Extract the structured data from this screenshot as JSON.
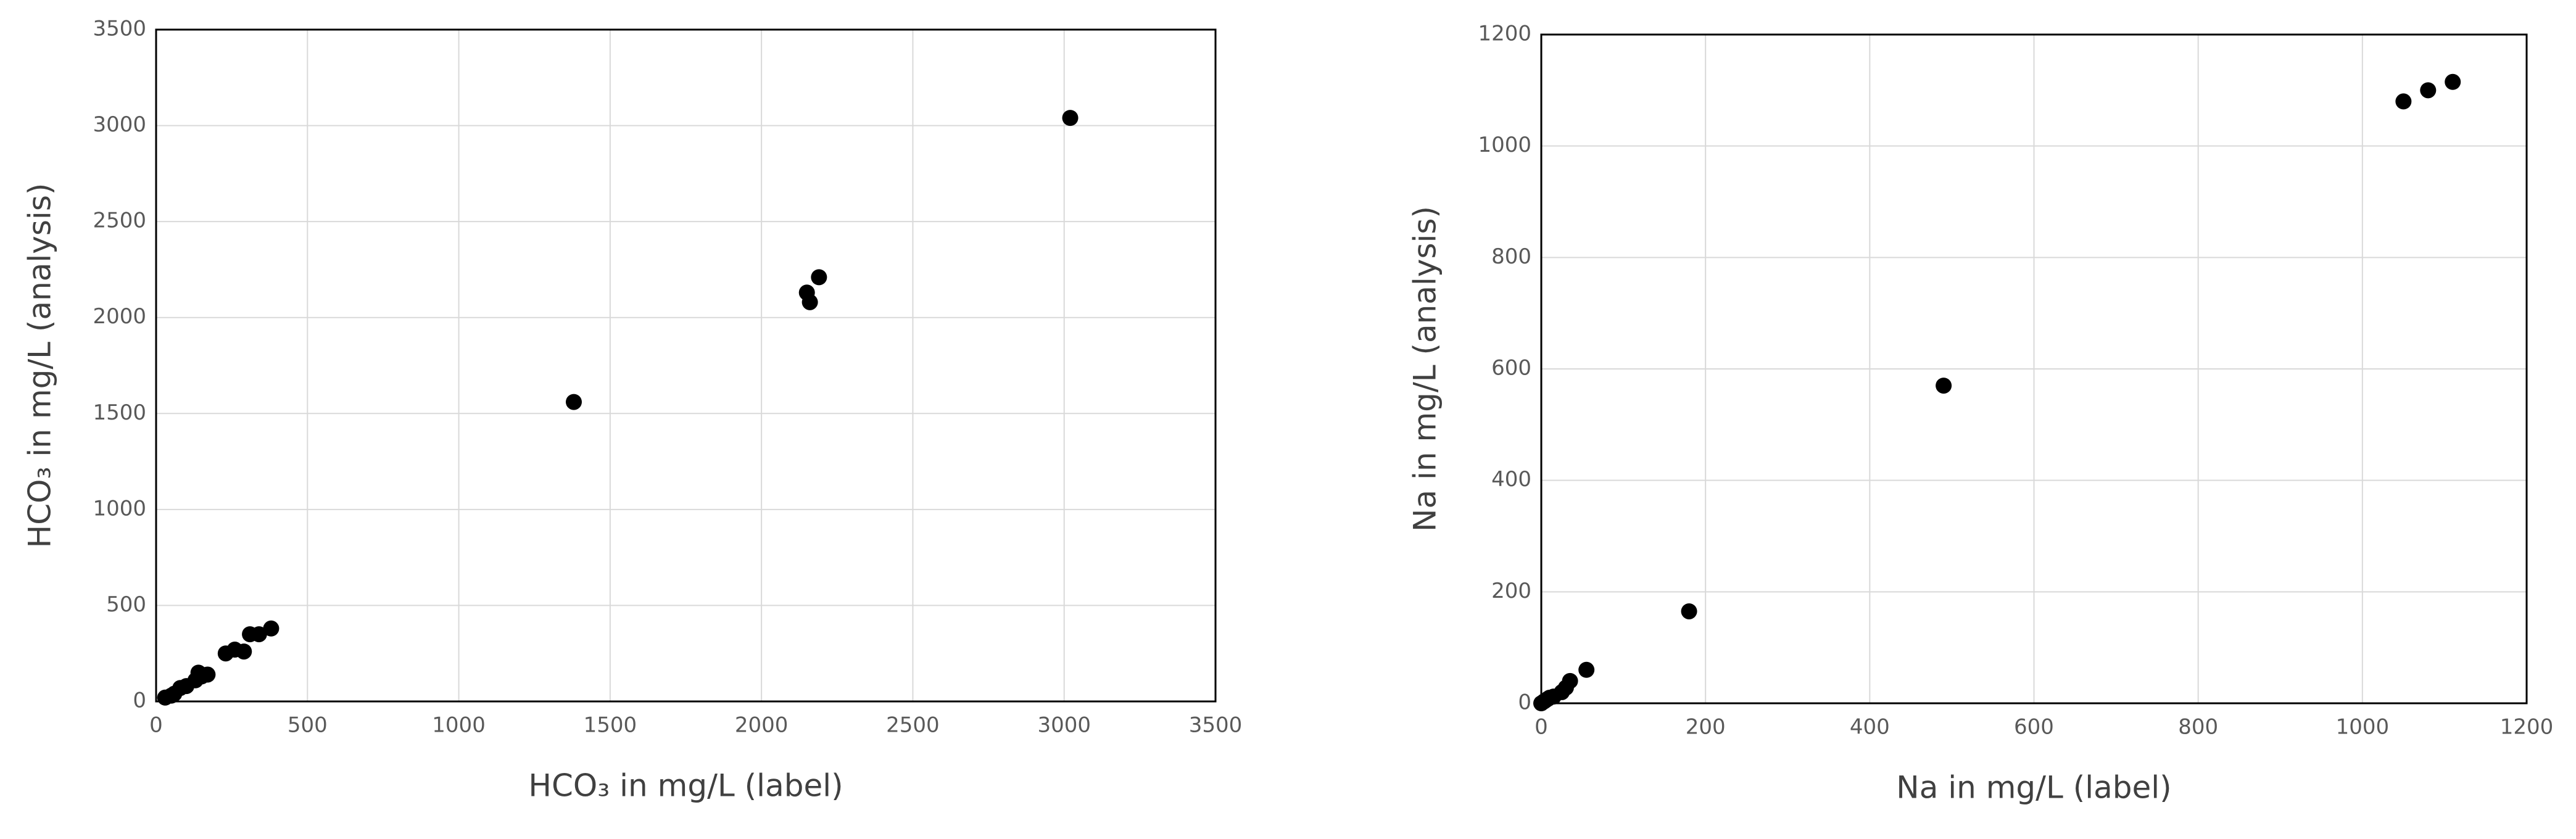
{
  "chart_data": [
    {
      "type": "scatter",
      "xlabel": "HCO₃ in mg/L (label)",
      "ylabel": "HCO₃ in mg/L (analysis)",
      "x": [
        30,
        50,
        60,
        80,
        100,
        130,
        140,
        150,
        170,
        230,
        260,
        290,
        310,
        340,
        380,
        1380,
        2150,
        2160,
        2190,
        3020
      ],
      "y": [
        20,
        30,
        40,
        70,
        80,
        110,
        150,
        130,
        140,
        250,
        270,
        260,
        350,
        350,
        380,
        1560,
        2130,
        2080,
        2210,
        3040
      ],
      "color": "#000000",
      "grid": true,
      "xlim": [
        0,
        3500
      ],
      "xticks": [
        0,
        500,
        1000,
        1500,
        2000,
        2500,
        3000,
        3500
      ],
      "ylim": [
        0,
        3500
      ],
      "yticks": [
        0,
        500,
        1000,
        1500,
        2000,
        2500,
        3000,
        3500
      ]
    },
    {
      "type": "scatter",
      "xlabel": "Na in mg/L (label)",
      "ylabel": "Na in mg/L (analysis)",
      "x": [
        0,
        3,
        5,
        8,
        10,
        15,
        25,
        30,
        35,
        55,
        180,
        490,
        1050,
        1080,
        1110
      ],
      "y": [
        0,
        3,
        5,
        8,
        10,
        12,
        20,
        28,
        40,
        60,
        165,
        570,
        1080,
        1100,
        1115
      ],
      "color": "#000000",
      "grid": true,
      "xlim": [
        0,
        1200
      ],
      "xticks": [
        0,
        200,
        400,
        600,
        800,
        1000,
        1200
      ],
      "ylim": [
        0,
        1200
      ],
      "yticks": [
        0,
        200,
        400,
        600,
        800,
        1000,
        1200
      ]
    }
  ]
}
